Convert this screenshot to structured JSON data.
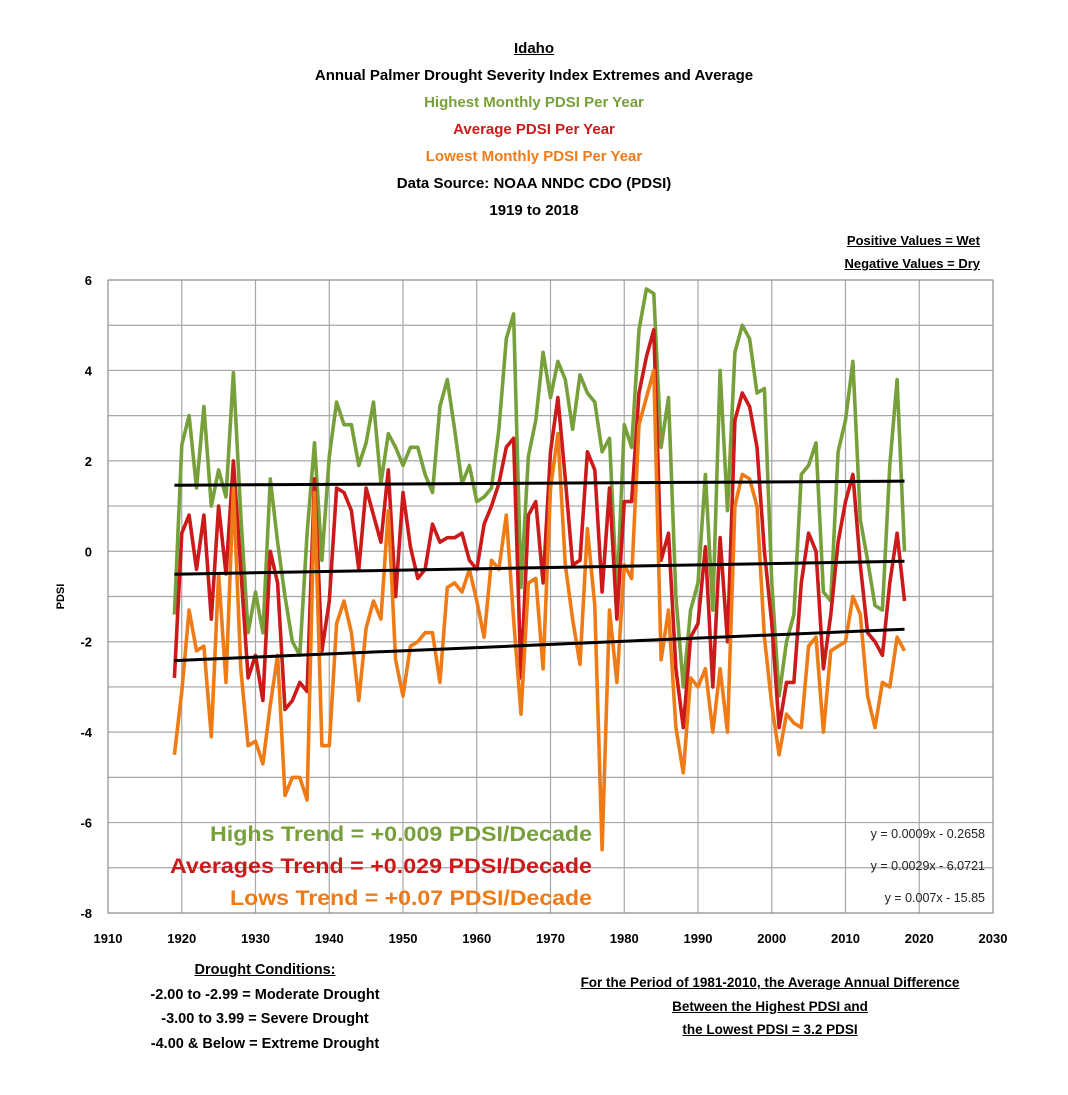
{
  "header": {
    "title": "Idaho",
    "subtitle": "Annual Palmer Drought Severity Index Extremes and Average",
    "line_highs": "Highest Monthly PDSI Per Year",
    "line_avg": "Average PDSI Per Year",
    "line_lows": "Lowest Monthly PDSI Per Year",
    "source": "Data Source: NOAA NNDC CDO (PDSI)",
    "period": "1919 to 2018"
  },
  "notes": {
    "positive": "Positive Values = Wet",
    "negative": "Negative Values = Dry"
  },
  "drought": {
    "title": "Drought Conditions:",
    "lines": [
      "-2.00 to -2.99 = Moderate Drought",
      "-3.00 to 3.99 = Severe Drought",
      "-4.00 & Below = Extreme Drought"
    ]
  },
  "difference": {
    "lines": [
      "For the Period of 1981-2010, the Average Annual Difference",
      "Between the  Highest PDSI and",
      "the Lowest PDSI = 3.2 PDSI"
    ]
  },
  "colors": {
    "highs": "#77a03a",
    "avg": "#cc1a1a",
    "lows": "#ef7b17",
    "trend": "#000000",
    "grid": "#a6a6a6"
  },
  "chart_data": {
    "type": "line",
    "ylabel": "PDSI",
    "xlabel": "",
    "xlim": [
      1910,
      2030
    ],
    "ylim": [
      -8,
      6
    ],
    "xticks": [
      1910,
      1920,
      1930,
      1940,
      1950,
      1960,
      1970,
      1980,
      1990,
      2000,
      2010,
      2020,
      2030
    ],
    "yticks": [
      6,
      4,
      2,
      0,
      -2,
      -4,
      -6,
      -8
    ],
    "grid": true,
    "x_start": 1919,
    "series": [
      {
        "key": "highs",
        "values": [
          -1.4,
          2.35,
          3.0,
          1.4,
          3.2,
          1.0,
          1.8,
          1.2,
          3.95,
          0.8,
          -1.8,
          -0.9,
          -1.8,
          1.6,
          0.2,
          -1.0,
          -2.0,
          -2.3,
          0.4,
          2.4,
          -0.2,
          2.1,
          3.3,
          2.8,
          2.8,
          1.9,
          2.4,
          3.3,
          1.5,
          2.6,
          2.3,
          1.9,
          2.3,
          2.3,
          1.7,
          1.3,
          3.2,
          3.8,
          2.7,
          1.5,
          1.9,
          1.1,
          1.2,
          1.4,
          2.7,
          4.7,
          5.25,
          -0.8,
          2.1,
          2.9,
          4.4,
          3.4,
          4.2,
          3.8,
          2.7,
          3.9,
          3.5,
          3.3,
          2.2,
          2.5,
          -1.0,
          2.8,
          2.3,
          4.9,
          5.8,
          5.7,
          2.3,
          3.4,
          -1.0,
          -3.0,
          -1.3,
          -0.7,
          1.7,
          -1.3,
          4.0,
          0.9,
          4.4,
          5.0,
          4.7,
          3.5,
          3.6,
          -0.7,
          -3.2,
          -2.0,
          -1.4,
          1.7,
          1.9,
          2.4,
          -0.9,
          -1.1,
          2.2,
          2.9,
          4.2,
          0.7,
          -0.2,
          -1.2,
          -1.3,
          1.9,
          3.8,
          0.0
        ]
      },
      {
        "key": "avg",
        "values": [
          -2.8,
          0.4,
          0.8,
          -0.4,
          0.8,
          -1.5,
          1.0,
          -0.5,
          2.0,
          -0.4,
          -2.8,
          -2.3,
          -3.3,
          0.0,
          -0.7,
          -3.5,
          -3.3,
          -2.9,
          -3.1,
          1.6,
          -2.2,
          -1.1,
          1.4,
          1.3,
          0.9,
          -0.4,
          1.4,
          0.8,
          0.2,
          1.8,
          -1.0,
          1.3,
          0.1,
          -0.6,
          -0.4,
          0.6,
          0.2,
          0.3,
          0.3,
          0.4,
          -0.2,
          -0.4,
          0.6,
          1.0,
          1.5,
          2.3,
          2.5,
          -2.8,
          0.8,
          1.1,
          -0.7,
          2.2,
          3.4,
          1.6,
          -0.3,
          -0.2,
          2.2,
          1.8,
          -0.9,
          1.4,
          -1.5,
          1.1,
          1.1,
          3.5,
          4.3,
          4.9,
          -0.2,
          0.4,
          -2.6,
          -3.9,
          -1.9,
          -1.6,
          0.1,
          -3.0,
          0.3,
          -2.0,
          2.9,
          3.5,
          3.2,
          2.3,
          0.0,
          -1.6,
          -3.9,
          -2.9,
          -2.9,
          -0.7,
          0.4,
          0.0,
          -2.6,
          -1.4,
          0.2,
          1.1,
          1.7,
          -0.3,
          -1.8,
          -2.0,
          -2.3,
          -0.7,
          0.4,
          -1.1
        ]
      },
      {
        "key": "lows",
        "values": [
          -4.5,
          -3.1,
          -1.3,
          -2.2,
          -2.1,
          -4.1,
          -0.5,
          -2.9,
          1.4,
          -2.6,
          -4.3,
          -4.2,
          -4.7,
          -3.4,
          -2.3,
          -5.4,
          -5.0,
          -5.0,
          -5.5,
          1.3,
          -4.3,
          -4.3,
          -1.6,
          -1.1,
          -1.8,
          -3.3,
          -1.7,
          -1.1,
          -1.5,
          0.9,
          -2.4,
          -3.2,
          -2.1,
          -2.0,
          -1.8,
          -1.8,
          -2.9,
          -0.8,
          -0.7,
          -0.9,
          -0.4,
          -1.1,
          -1.9,
          -0.2,
          -0.4,
          0.8,
          -1.5,
          -3.6,
          -0.7,
          -0.6,
          -2.6,
          1.4,
          2.6,
          -0.3,
          -1.5,
          -2.5,
          0.5,
          -1.2,
          -6.6,
          -1.3,
          -2.9,
          -0.3,
          -0.6,
          2.8,
          3.4,
          4.0,
          -2.4,
          -1.3,
          -3.9,
          -4.9,
          -2.8,
          -3.0,
          -2.6,
          -4.0,
          -2.6,
          -4.0,
          1.0,
          1.7,
          1.6,
          1.0,
          -1.9,
          -3.4,
          -4.5,
          -3.6,
          -3.8,
          -3.9,
          -2.1,
          -1.9,
          -4.0,
          -2.2,
          -2.1,
          -2.0,
          -1.0,
          -1.4,
          -3.2,
          -3.9,
          -2.9,
          -3.0,
          -1.9,
          -2.2
        ]
      }
    ],
    "trendlines": [
      {
        "key": "highs",
        "slope": 0.0009,
        "intercept": -0.2658,
        "equation": "y = 0.0009x - 0.2658",
        "label": "Highs Trend = +0.009 PDSI/Decade"
      },
      {
        "key": "avg",
        "slope": 0.0029,
        "intercept": -6.0721,
        "equation": "y = 0.0029x - 6.0721",
        "label": "Averages Trend = +0.029 PDSI/Decade"
      },
      {
        "key": "lows",
        "slope": 0.007,
        "intercept": -15.85,
        "equation": "y = 0.007x - 15.85",
        "label": "Lows Trend = +0.07 PDSI/Decade"
      }
    ],
    "trend_range": [
      1919,
      2018
    ]
  }
}
